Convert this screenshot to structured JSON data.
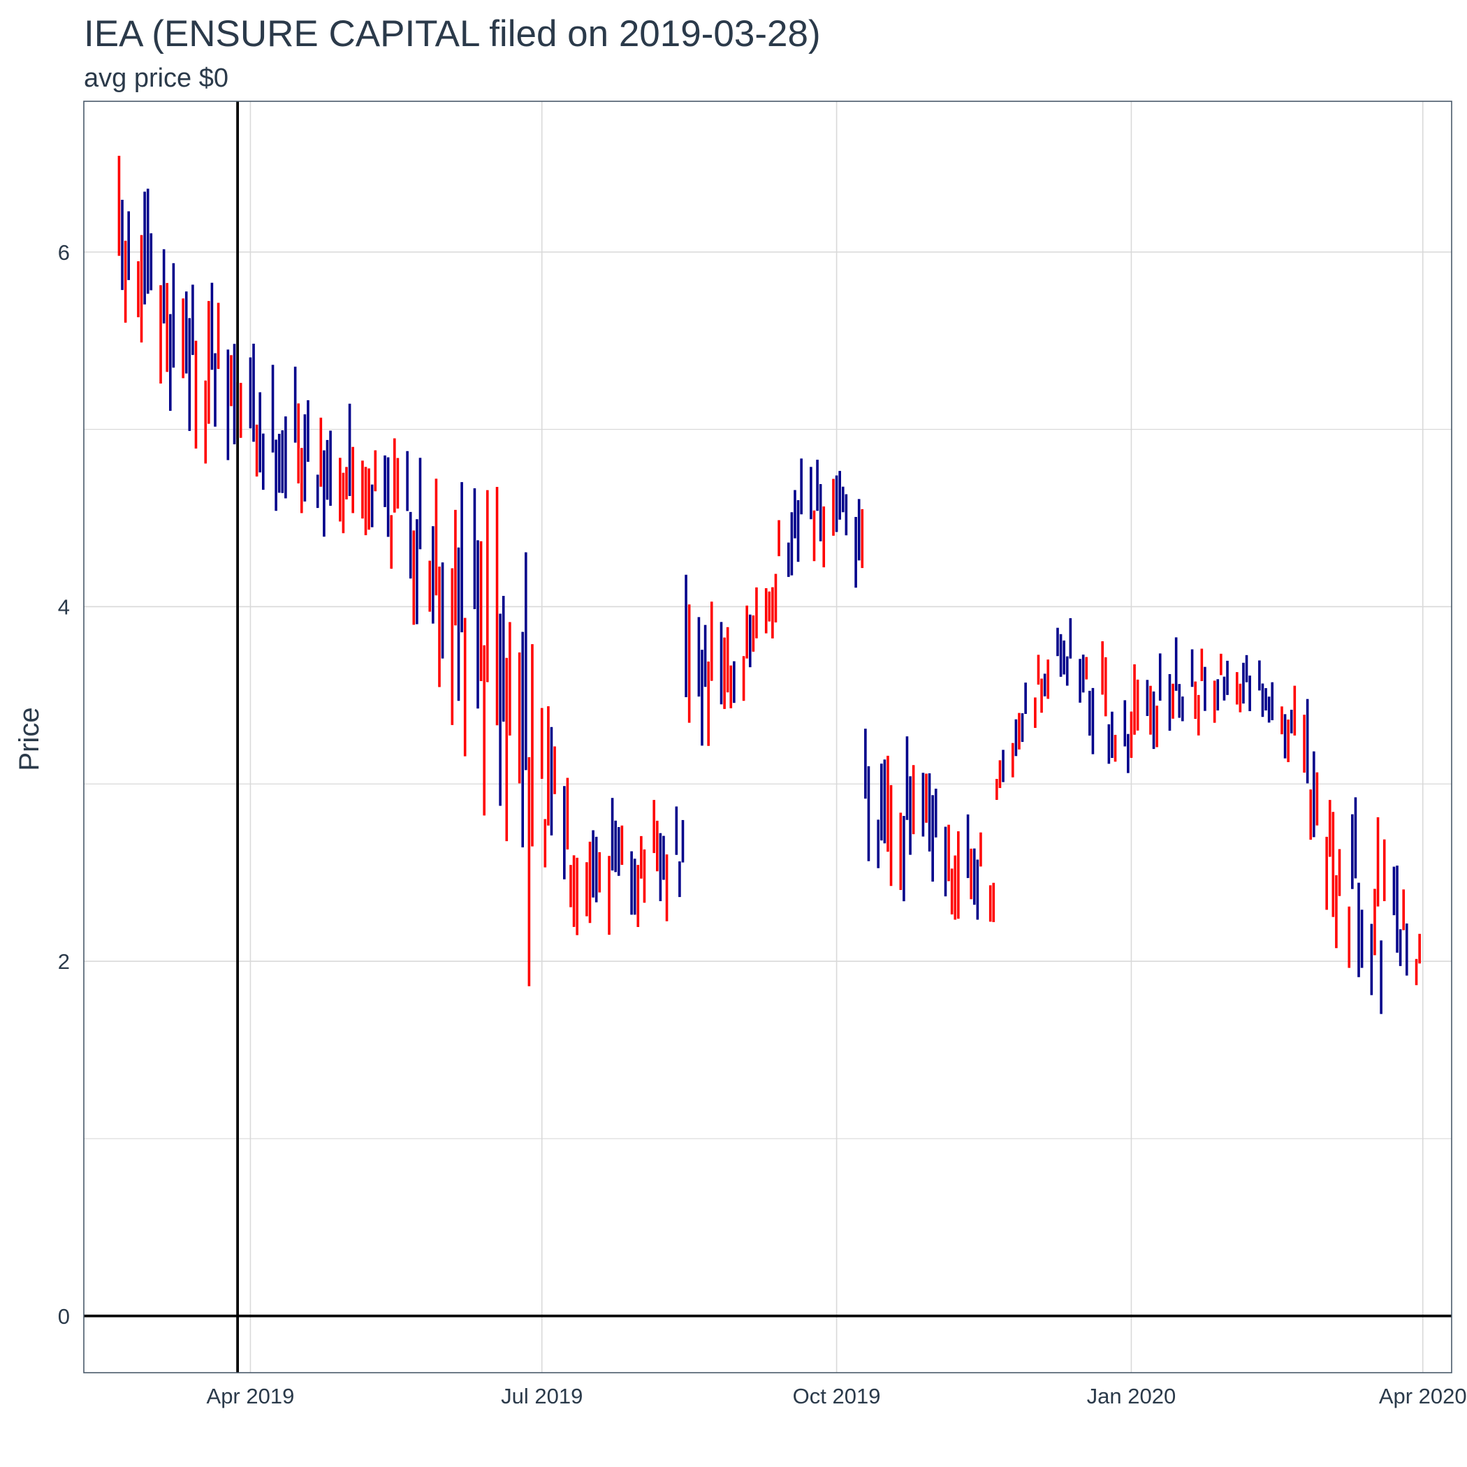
{
  "chart_data": {
    "type": "ohlc",
    "title": "IEA (ENSURE CAPITAL filed on 2019-03-28)",
    "subtitle": "avg price $0",
    "xlabel": "",
    "ylabel": "Price",
    "xlim": [
      "2019-02-08",
      "2020-04-10"
    ],
    "ylim": [
      -0.32,
      6.85
    ],
    "grid": true,
    "legend": "none",
    "y_ticks": [
      0,
      2,
      4,
      6
    ],
    "x_ticks": [
      {
        "date": "2019-04-01",
        "label": "Apr 2019"
      },
      {
        "date": "2019-07-01",
        "label": "Jul 2019"
      },
      {
        "date": "2019-10-01",
        "label": "Oct 2019"
      },
      {
        "date": "2020-01-01",
        "label": "Jan 2020"
      },
      {
        "date": "2020-04-01",
        "label": "Apr 2020"
      }
    ],
    "filing_date": "2019-03-28",
    "reference_price": 0,
    "colors": {
      "up": "#00008b",
      "down": "#ff0000",
      "reference": "#000000",
      "grid": "#d9d9d9"
    },
    "segments": [
      {
        "start": "2019-02-19",
        "end": "2019-06-28",
        "hi": [
          6.55,
          5.45,
          5.0,
          4.6
        ],
        "lo": [
          5.35,
          4.55,
          4.25,
          1.8
        ]
      },
      {
        "start": "2019-07-01",
        "end": "2019-08-14",
        "hi": [
          3.5,
          3.0,
          2.85,
          2.8
        ],
        "lo": [
          2.3,
          2.2,
          2.2,
          2.25
        ]
      },
      {
        "start": "2019-08-15",
        "end": "2019-10-09",
        "hi": [
          4.35,
          3.95,
          4.8,
          4.75
        ],
        "lo": [
          3.0,
          3.5,
          4.2,
          4.1
        ]
      },
      {
        "start": "2019-10-10",
        "end": "2019-11-19",
        "hi": [
          3.5,
          3.3,
          2.9,
          2.75
        ],
        "lo": [
          2.45,
          2.4,
          2.1,
          2.15
        ]
      },
      {
        "start": "2019-11-20",
        "end": "2020-02-24",
        "hi": [
          3.0,
          4.05,
          3.6,
          3.85,
          3.75,
          3.5
        ],
        "lo": [
          2.95,
          3.55,
          3.0,
          3.3,
          3.4,
          3.0
        ]
      },
      {
        "start": "2020-02-25",
        "end": "2020-03-31",
        "hi": [
          3.45,
          2.9,
          2.75,
          2.25
        ],
        "lo": [
          2.6,
          1.95,
          1.8,
          1.85
        ]
      }
    ]
  }
}
